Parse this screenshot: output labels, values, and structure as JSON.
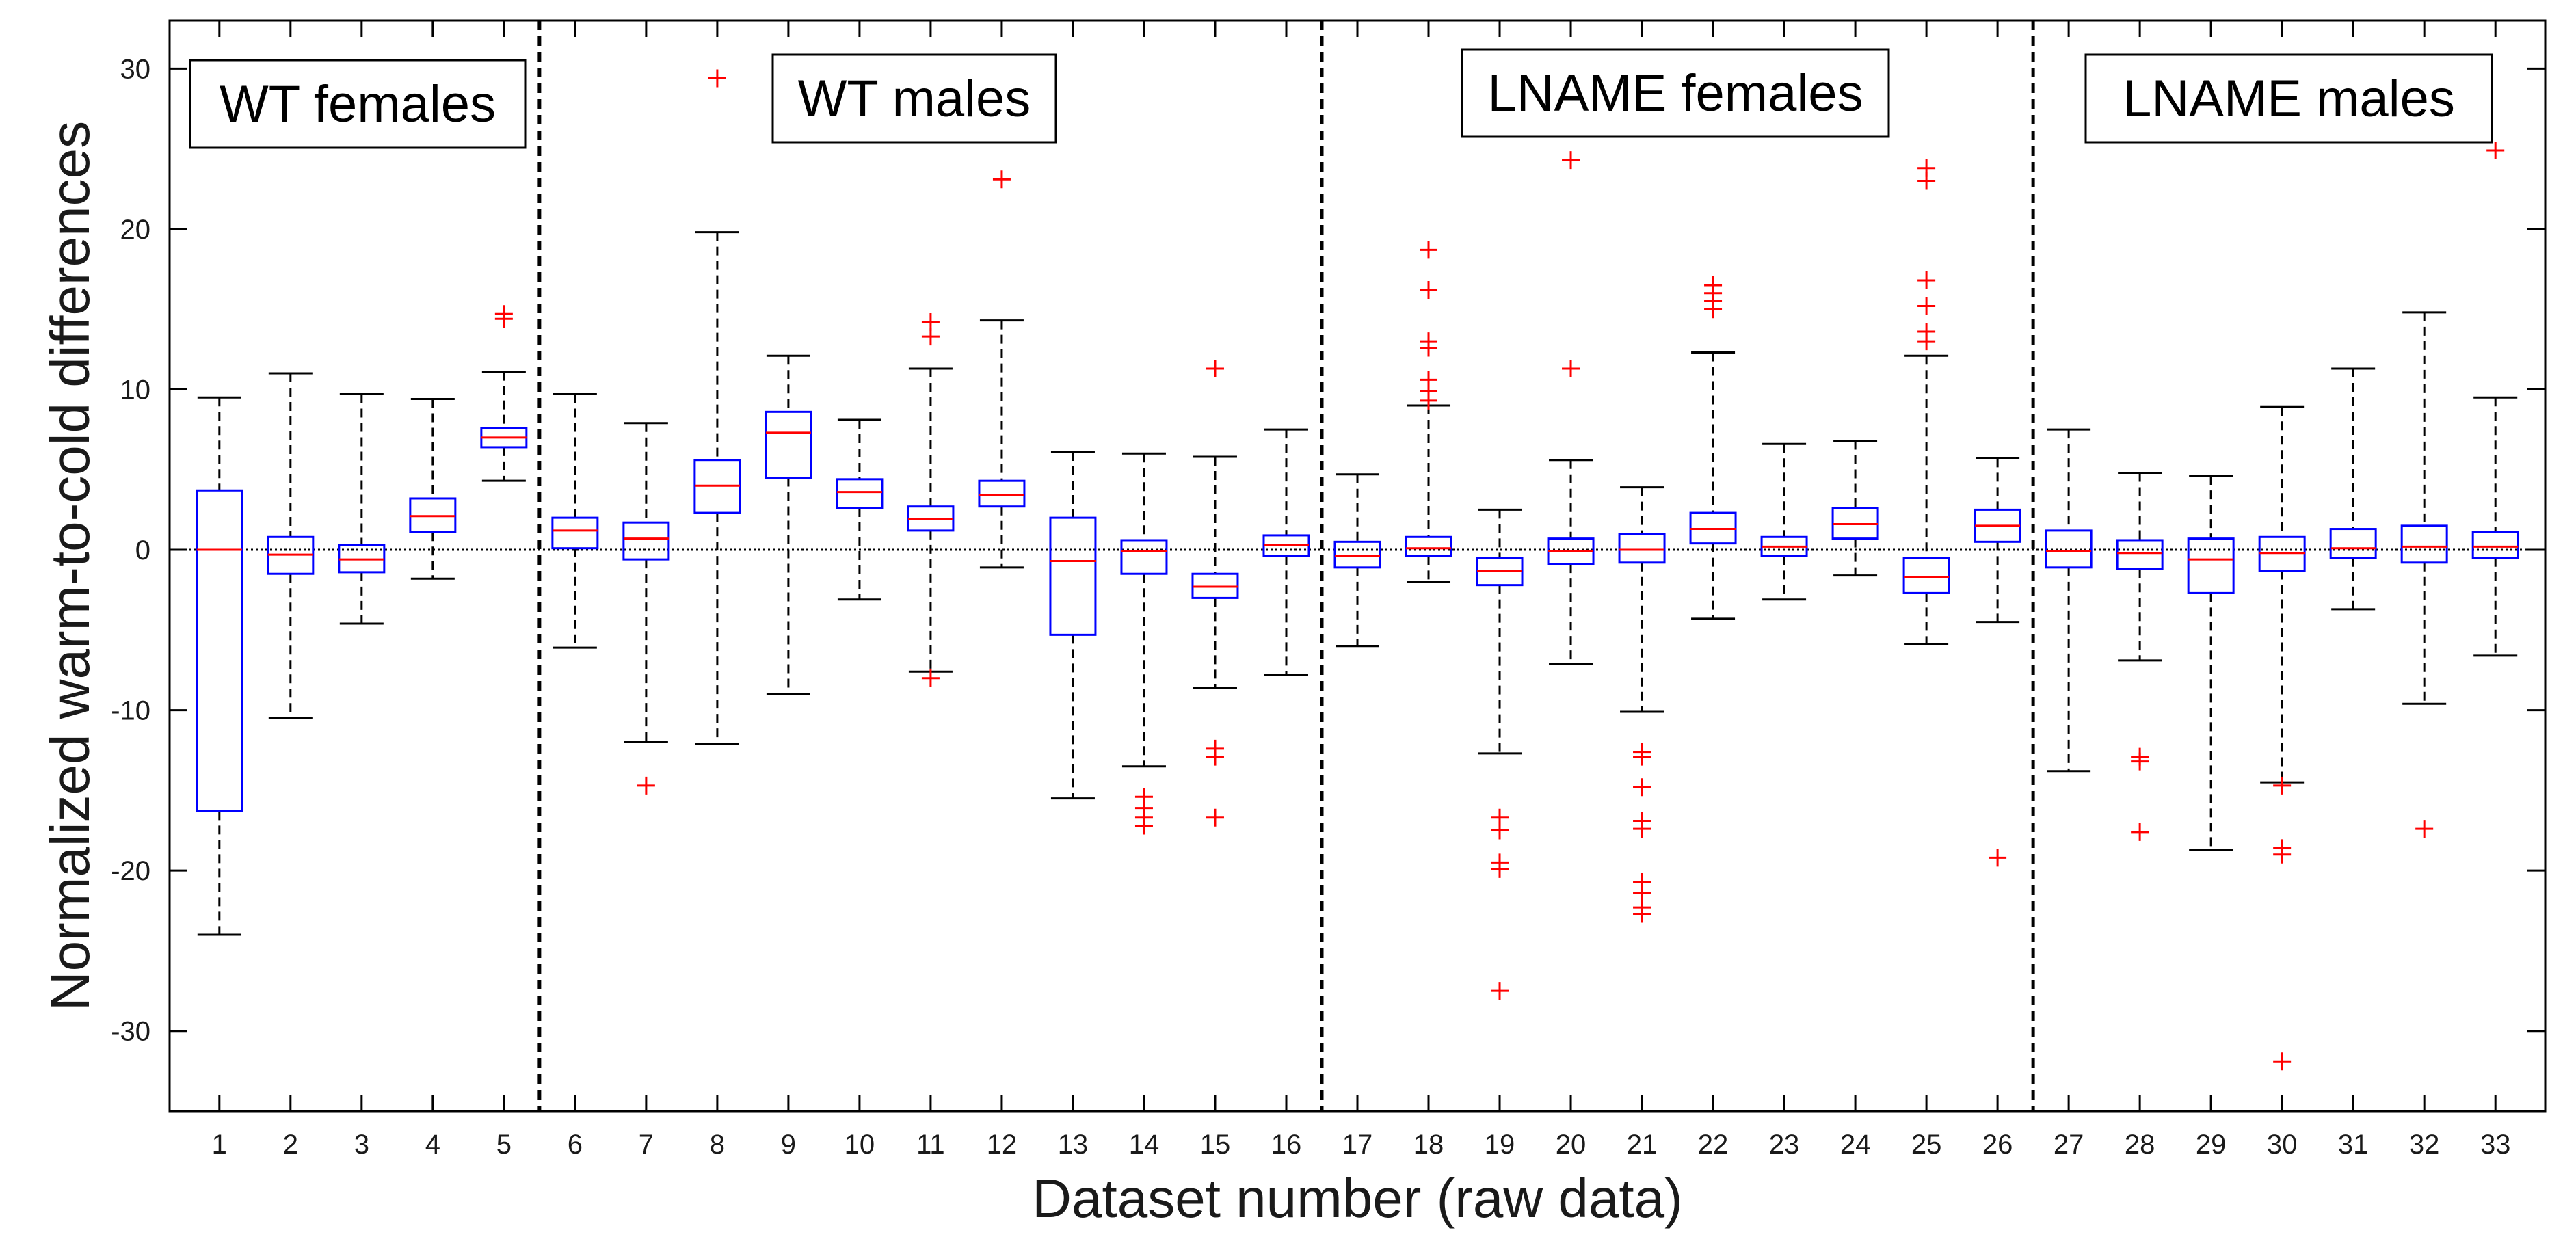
{
  "chart_data": {
    "type": "boxplot",
    "xlabel": "Dataset number (raw data)",
    "ylabel": "Normalized warm-to-cold differences",
    "ylim": [
      -35,
      33
    ],
    "yticks": [
      -30,
      -20,
      -10,
      0,
      10,
      20,
      30
    ],
    "zero_line": 0,
    "group_separators_after": [
      5,
      16,
      26
    ],
    "groups": [
      {
        "label": "WT females",
        "datasets": [
          1,
          5
        ]
      },
      {
        "label": "WT males",
        "datasets": [
          6,
          16
        ]
      },
      {
        "label": "LNAME females",
        "datasets": [
          17,
          26
        ]
      },
      {
        "label": "LNAME males",
        "datasets": [
          27,
          33
        ]
      }
    ],
    "colors": {
      "box": "#0000ff",
      "median": "#ff0000",
      "outlier": "#ff0000",
      "whisker": "#000000"
    },
    "boxes": [
      {
        "n": "1",
        "lw": -24.0,
        "q1": -16.3,
        "med": 0.0,
        "q3": 3.7,
        "uw": 9.5,
        "out": []
      },
      {
        "n": "2",
        "lw": -10.5,
        "q1": -1.5,
        "med": -0.3,
        "q3": 0.8,
        "uw": 11.0,
        "out": []
      },
      {
        "n": "3",
        "lw": -4.6,
        "q1": -1.4,
        "med": -0.6,
        "q3": 0.3,
        "uw": 9.7,
        "out": []
      },
      {
        "n": "4",
        "lw": -1.8,
        "q1": 1.1,
        "med": 2.1,
        "q3": 3.2,
        "uw": 9.4,
        "out": []
      },
      {
        "n": "5",
        "lw": 4.3,
        "q1": 6.4,
        "med": 7.0,
        "q3": 7.6,
        "uw": 11.1,
        "out": [
          14.4,
          14.7
        ]
      },
      {
        "n": "6",
        "lw": -6.1,
        "q1": 0.1,
        "med": 1.2,
        "q3": 2.0,
        "uw": 9.7,
        "out": []
      },
      {
        "n": "7",
        "lw": -12.0,
        "q1": -0.6,
        "med": 0.7,
        "q3": 1.7,
        "uw": 7.9,
        "out": [
          -14.7
        ]
      },
      {
        "n": "8",
        "lw": -12.1,
        "q1": 2.3,
        "med": 4.0,
        "q3": 5.6,
        "uw": 19.8,
        "out": [
          29.4
        ]
      },
      {
        "n": "9",
        "lw": -9.0,
        "q1": 4.5,
        "med": 7.3,
        "q3": 8.6,
        "uw": 12.1,
        "out": []
      },
      {
        "n": "10",
        "lw": -3.1,
        "q1": 2.6,
        "med": 3.6,
        "q3": 4.4,
        "uw": 8.1,
        "out": []
      },
      {
        "n": "11",
        "lw": -7.6,
        "q1": 1.2,
        "med": 1.9,
        "q3": 2.7,
        "uw": 11.3,
        "out": [
          -8.0,
          13.3,
          14.2
        ]
      },
      {
        "n": "12",
        "lw": -1.1,
        "q1": 2.7,
        "med": 3.4,
        "q3": 4.3,
        "uw": 14.3,
        "out": [
          23.1
        ]
      },
      {
        "n": "13",
        "lw": -15.5,
        "q1": -5.3,
        "med": -0.7,
        "q3": 2.0,
        "uw": 6.1,
        "out": []
      },
      {
        "n": "14",
        "lw": -13.5,
        "q1": -1.5,
        "med": -0.1,
        "q3": 0.6,
        "uw": 6.0,
        "out": [
          -15.4,
          -16.1,
          -16.7,
          -17.2
        ]
      },
      {
        "n": "15",
        "lw": -8.6,
        "q1": -3.0,
        "med": -2.3,
        "q3": -1.5,
        "uw": 5.8,
        "out": [
          11.3,
          -12.4,
          -12.9,
          -16.7
        ]
      },
      {
        "n": "16",
        "lw": -7.8,
        "q1": -0.4,
        "med": 0.3,
        "q3": 0.9,
        "uw": 7.5,
        "out": []
      },
      {
        "n": "17",
        "lw": -6.0,
        "q1": -1.1,
        "med": -0.4,
        "q3": 0.5,
        "uw": 4.7,
        "out": []
      },
      {
        "n": "18",
        "lw": -2.0,
        "q1": -0.4,
        "med": 0.1,
        "q3": 0.8,
        "uw": 9.0,
        "out": [
          9.3,
          9.9,
          10.6,
          12.6,
          13.0,
          16.2,
          18.7
        ]
      },
      {
        "n": "19",
        "lw": -12.7,
        "q1": -2.2,
        "med": -1.3,
        "q3": -0.5,
        "uw": 2.5,
        "out": [
          -16.7,
          -17.5,
          -19.5,
          -19.9,
          -27.5
        ]
      },
      {
        "n": "20",
        "lw": -7.1,
        "q1": -0.9,
        "med": -0.1,
        "q3": 0.7,
        "uw": 5.6,
        "out": [
          11.3,
          24.3
        ]
      },
      {
        "n": "21",
        "lw": -10.1,
        "q1": -0.8,
        "med": 0.0,
        "q3": 1.0,
        "uw": 3.9,
        "out": [
          -12.6,
          -12.9,
          -14.8,
          -16.9,
          -17.4,
          -20.7,
          -21.4,
          -22.3,
          -22.7
        ]
      },
      {
        "n": "22",
        "lw": -4.3,
        "q1": 0.4,
        "med": 1.3,
        "q3": 2.3,
        "uw": 12.3,
        "out": [
          15.0,
          15.5,
          16.0,
          16.5
        ]
      },
      {
        "n": "23",
        "lw": -3.1,
        "q1": -0.4,
        "med": 0.2,
        "q3": 0.8,
        "uw": 6.6,
        "out": []
      },
      {
        "n": "24",
        "lw": -1.6,
        "q1": 0.7,
        "med": 1.6,
        "q3": 2.6,
        "uw": 6.8,
        "out": []
      },
      {
        "n": "25",
        "lw": -5.9,
        "q1": -2.7,
        "med": -1.7,
        "q3": -0.5,
        "uw": 12.1,
        "out": [
          13.0,
          13.6,
          15.2,
          16.8,
          23.0,
          23.8
        ]
      },
      {
        "n": "26",
        "lw": -4.5,
        "q1": 0.5,
        "med": 1.5,
        "q3": 2.5,
        "uw": 5.7,
        "out": [
          -19.2
        ]
      },
      {
        "n": "27",
        "lw": -13.8,
        "q1": -1.1,
        "med": -0.1,
        "q3": 1.2,
        "uw": 7.5,
        "out": []
      },
      {
        "n": "28",
        "lw": -6.9,
        "q1": -1.2,
        "med": -0.2,
        "q3": 0.6,
        "uw": 4.8,
        "out": [
          -12.9,
          -13.2,
          -17.6
        ]
      },
      {
        "n": "29",
        "lw": -18.7,
        "q1": -2.7,
        "med": -0.6,
        "q3": 0.7,
        "uw": 4.6,
        "out": []
      },
      {
        "n": "30",
        "lw": -14.5,
        "q1": -1.3,
        "med": -0.2,
        "q3": 0.8,
        "uw": 8.9,
        "out": [
          -14.7,
          -18.6,
          -19.0,
          -31.9
        ]
      },
      {
        "n": "31",
        "lw": -3.7,
        "q1": -0.5,
        "med": 0.1,
        "q3": 1.3,
        "uw": 11.3,
        "out": []
      },
      {
        "n": "32",
        "lw": -9.6,
        "q1": -0.8,
        "med": 0.2,
        "q3": 1.5,
        "uw": 14.8,
        "out": [
          -17.4
        ]
      },
      {
        "n": "33",
        "lw": -6.6,
        "q1": -0.5,
        "med": 0.2,
        "q3": 1.1,
        "uw": 9.5,
        "out": [
          24.9
        ]
      }
    ]
  }
}
